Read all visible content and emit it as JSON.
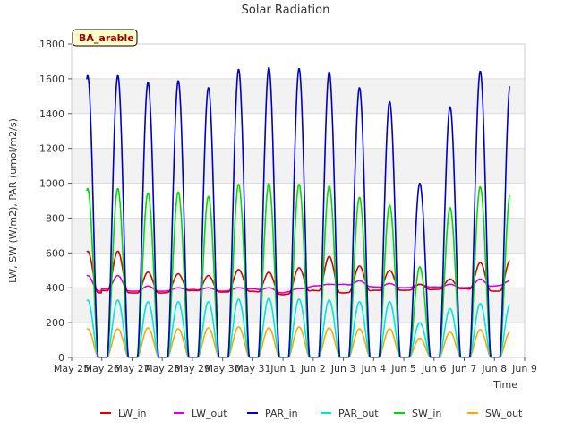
{
  "chart_data": {
    "type": "line",
    "title": "Solar Radiation",
    "xlabel": "Time",
    "ylabel": "LW, SW (W/m2), PAR (umol/m2/s)",
    "site_label": "BA_arable",
    "xlim": [
      "2024-05-25",
      "2024-06-09"
    ],
    "ylim": [
      0,
      1800
    ],
    "x_ticks": [
      "May 25",
      "May 26",
      "May 27",
      "May 28",
      "May 29",
      "May 30",
      "May 31",
      "Jun 1",
      "Jun 2",
      "Jun 3",
      "Jun 4",
      "Jun 5",
      "Jun 6",
      "Jun 7",
      "Jun 8",
      "Jun 9"
    ],
    "y_ticks": [
      0,
      200,
      400,
      600,
      800,
      1000,
      1200,
      1400,
      1600,
      1800
    ],
    "grid": true,
    "legend_position": "bottom",
    "days": [
      "May 25",
      "May 26",
      "May 27",
      "May 28",
      "May 29",
      "May 30",
      "May 31",
      "Jun 1",
      "Jun 2",
      "Jun 3",
      "Jun 4",
      "Jun 5",
      "Jun 6",
      "Jun 7",
      "Jun 8"
    ],
    "series": [
      {
        "name": "LW_in",
        "color": "#dd0000",
        "kind": "longwave",
        "night_level": [
          385,
          370,
          370,
          385,
          375,
          380,
          360,
          385,
          370,
          385,
          385,
          390,
          395,
          380,
          385
        ],
        "daily_peaks": [
          610,
          490,
          480,
          470,
          505,
          490,
          515,
          580,
          525,
          500,
          420,
          450,
          545,
          560
        ]
      },
      {
        "name": "LW_out",
        "color": "#dd00dd",
        "kind": "longwave",
        "night_level": [
          395,
          380,
          380,
          390,
          380,
          395,
          370,
          410,
          420,
          405,
          400,
          405,
          400,
          410,
          430
        ],
        "daily_peaks": [
          470,
          410,
          400,
          400,
          400,
          400,
          395,
          420,
          440,
          425,
          420,
          420,
          450,
          440
        ]
      },
      {
        "name": "PAR_in",
        "color": "#0000cc",
        "kind": "shortwave",
        "daily_peaks": [
          1620,
          1580,
          1590,
          1550,
          1655,
          1665,
          1660,
          1640,
          1550,
          1470,
          1000,
          1440,
          1645,
          1580
        ]
      },
      {
        "name": "PAR_out",
        "color": "#00e5e5",
        "kind": "shortwave",
        "daily_peaks": [
          330,
          320,
          320,
          320,
          335,
          340,
          335,
          330,
          320,
          320,
          200,
          280,
          310,
          310
        ]
      },
      {
        "name": "SW_in",
        "color": "#00dd00",
        "kind": "shortwave",
        "daily_peaks": [
          970,
          945,
          950,
          925,
          995,
          1000,
          995,
          985,
          920,
          875,
          520,
          860,
          980,
          945
        ]
      },
      {
        "name": "SW_out",
        "color": "#ffa500",
        "kind": "shortwave",
        "daily_peaks": [
          165,
          170,
          165,
          170,
          175,
          170,
          175,
          170,
          165,
          165,
          110,
          145,
          160,
          150
        ]
      }
    ]
  }
}
